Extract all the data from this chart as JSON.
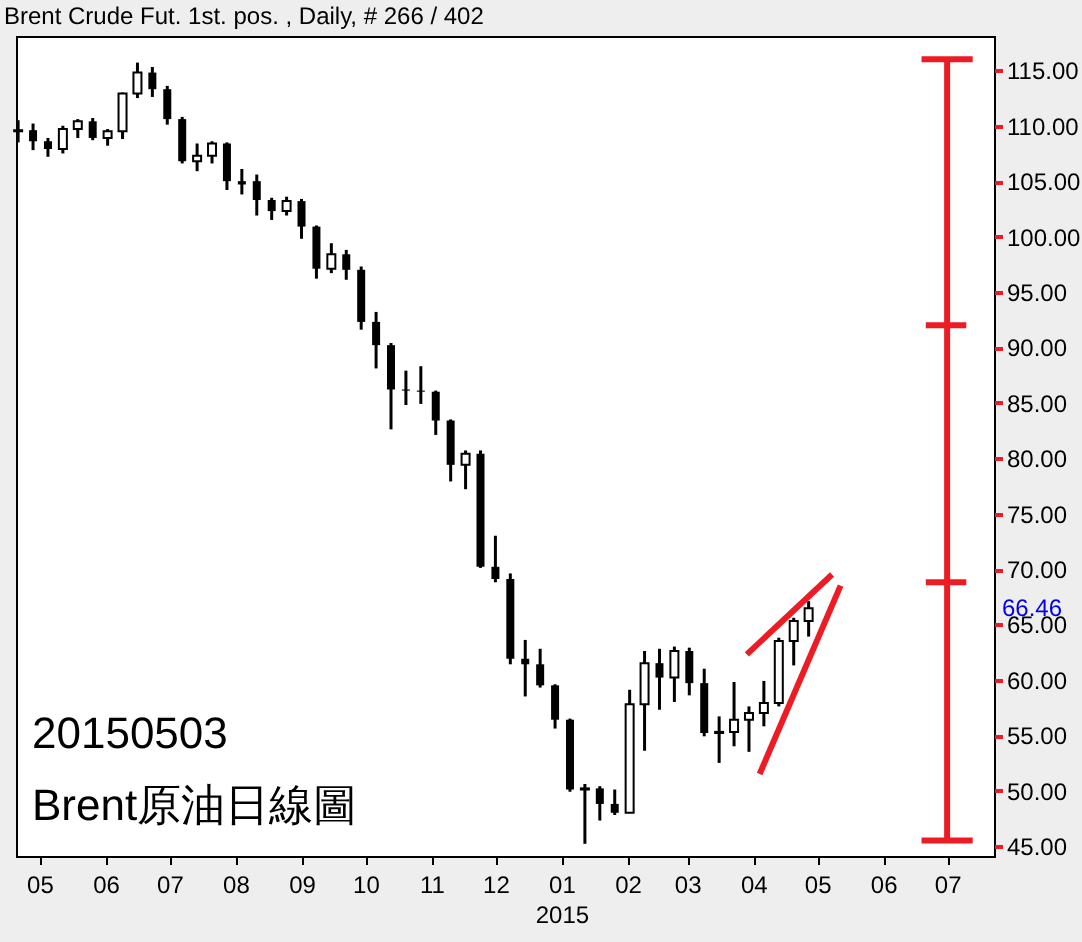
{
  "chart_data": {
    "type": "candlestick",
    "title": "Brent Crude Fut. 1st. pos. , Daily, # 266 / 402",
    "xlabel": "2015",
    "color": "#000000",
    "annotations": [
      "20150503",
      "Brent原油日線圖",
      "66.46"
    ],
    "x": [
      "2014-04-21",
      "2014-04-28",
      "2014-05-05",
      "2014-05-12",
      "2014-05-19",
      "2014-05-26",
      "2014-06-02",
      "2014-06-09",
      "2014-06-16",
      "2014-06-23",
      "2014-06-30",
      "2014-07-07",
      "2014-07-14",
      "2014-07-21",
      "2014-07-28",
      "2014-08-04",
      "2014-08-11",
      "2014-08-18",
      "2014-08-25",
      "2014-09-01",
      "2014-09-08",
      "2014-09-15",
      "2014-09-22",
      "2014-09-29",
      "2014-10-06",
      "2014-10-13",
      "2014-10-20",
      "2014-10-27",
      "2014-11-03",
      "2014-11-10",
      "2014-11-17",
      "2014-11-24",
      "2014-12-01",
      "2014-12-08",
      "2014-12-15",
      "2014-12-22",
      "2014-12-29",
      "2015-01-05",
      "2015-01-12",
      "2015-01-19",
      "2015-01-26",
      "2015-02-02",
      "2015-02-09",
      "2015-02-16",
      "2015-02-23",
      "2015-03-02",
      "2015-03-09",
      "2015-03-16",
      "2015-03-23",
      "2015-03-30",
      "2015-04-06",
      "2015-04-13",
      "2015-04-20",
      "2015-04-27"
    ],
    "ohlc": [
      [
        109.5,
        110.5,
        108.5,
        109.6
      ],
      [
        109.6,
        110.2,
        107.8,
        108.6
      ],
      [
        108.6,
        108.9,
        107.2,
        107.9
      ],
      [
        107.9,
        110.0,
        107.5,
        109.7
      ],
      [
        109.7,
        110.6,
        108.9,
        110.4
      ],
      [
        110.4,
        110.7,
        108.7,
        108.9
      ],
      [
        108.9,
        109.7,
        108.2,
        109.5
      ],
      [
        109.5,
        113.0,
        108.8,
        112.9
      ],
      [
        112.9,
        115.7,
        112.5,
        114.8
      ],
      [
        114.8,
        115.3,
        112.6,
        113.3
      ],
      [
        113.3,
        113.6,
        110.1,
        110.6
      ],
      [
        110.6,
        110.8,
        106.6,
        106.8
      ],
      [
        106.8,
        108.4,
        105.9,
        107.3
      ],
      [
        107.3,
        108.6,
        106.6,
        108.4
      ],
      [
        108.4,
        108.5,
        104.2,
        105.0
      ],
      [
        105.0,
        106.1,
        103.8,
        104.7
      ],
      [
        105.0,
        105.6,
        101.9,
        103.3
      ],
      [
        103.3,
        103.5,
        101.5,
        102.3
      ],
      [
        102.3,
        103.6,
        101.9,
        103.2
      ],
      [
        103.2,
        103.4,
        99.8,
        100.9
      ],
      [
        100.9,
        101.0,
        96.2,
        97.1
      ],
      [
        97.1,
        99.4,
        96.7,
        98.4
      ],
      [
        98.4,
        98.8,
        96.1,
        97.0
      ],
      [
        97.0,
        97.3,
        91.6,
        92.3
      ],
      [
        92.3,
        93.2,
        88.1,
        90.2
      ],
      [
        90.2,
        90.4,
        82.6,
        86.2
      ],
      [
        86.2,
        87.9,
        84.8,
        86.1
      ],
      [
        86.1,
        88.3,
        84.9,
        86.0
      ],
      [
        86.0,
        86.1,
        82.1,
        83.4
      ],
      [
        83.4,
        83.5,
        77.9,
        79.4
      ],
      [
        79.4,
        80.7,
        77.2,
        80.4
      ],
      [
        80.4,
        80.7,
        70.1,
        70.2
      ],
      [
        70.2,
        73.0,
        68.8,
        69.1
      ],
      [
        69.1,
        69.6,
        61.4,
        61.9
      ],
      [
        61.9,
        63.6,
        58.5,
        61.4
      ],
      [
        61.4,
        62.8,
        59.3,
        59.5
      ],
      [
        59.5,
        59.6,
        55.6,
        56.4
      ],
      [
        56.4,
        56.5,
        49.9,
        50.1
      ],
      [
        50.1,
        50.6,
        45.2,
        50.2
      ],
      [
        50.2,
        50.4,
        47.3,
        48.8
      ],
      [
        48.8,
        50.1,
        47.8,
        48.0
      ],
      [
        48.0,
        59.1,
        48.0,
        57.8
      ],
      [
        57.8,
        62.6,
        53.6,
        61.5
      ],
      [
        61.5,
        62.8,
        57.3,
        60.2
      ],
      [
        60.2,
        63.0,
        58.0,
        62.6
      ],
      [
        62.6,
        62.9,
        58.6,
        59.7
      ],
      [
        59.7,
        61.0,
        54.9,
        55.2
      ],
      [
        55.2,
        56.7,
        52.5,
        55.3
      ],
      [
        55.3,
        59.8,
        54.0,
        56.4
      ],
      [
        56.4,
        57.6,
        53.5,
        57.0
      ],
      [
        57.0,
        59.9,
        55.8,
        57.9
      ],
      [
        57.9,
        63.8,
        57.6,
        63.5
      ],
      [
        63.5,
        65.6,
        61.3,
        65.3
      ],
      [
        65.3,
        67.1,
        63.9,
        66.46
      ]
    ],
    "series": [
      {
        "type": "line",
        "color": "#ed1c24",
        "x": [
          "2015-03-29",
          "2015-05-08"
        ],
        "values": [
          62.3,
          69.5
        ]
      },
      {
        "type": "line",
        "color": "#ed1c24",
        "x": [
          "2015-04-04",
          "2015-05-12"
        ],
        "values": [
          51.5,
          68.5
        ]
      },
      {
        "type": "line",
        "color": "#ed1c24",
        "x": [
          "2015-07-01",
          "2015-07-01"
        ],
        "values": [
          116.0,
          45.5
        ]
      },
      {
        "type": "line",
        "color": "#ed1c24",
        "x": [
          "2015-06-19",
          "2015-07-13"
        ],
        "values": [
          116.0,
          116.0
        ]
      },
      {
        "type": "line",
        "color": "#ed1c24",
        "x": [
          "2015-06-21",
          "2015-07-10"
        ],
        "values": [
          92.0,
          92.0
        ]
      },
      {
        "type": "line",
        "color": "#ed1c24",
        "x": [
          "2015-06-21",
          "2015-07-10"
        ],
        "values": [
          68.8,
          68.8
        ]
      },
      {
        "type": "line",
        "color": "#ed1c24",
        "x": [
          "2015-06-19",
          "2015-07-13"
        ],
        "values": [
          45.5,
          45.5
        ]
      }
    ],
    "xlim": [
      "2014-04-20",
      "2015-07-23"
    ],
    "xticks": [
      {
        "value": "2014-05-01",
        "label": "05"
      },
      {
        "value": "2014-06-01",
        "label": "06"
      },
      {
        "value": "2014-07-01",
        "label": "07"
      },
      {
        "value": "2014-08-01",
        "label": "08"
      },
      {
        "value": "2014-09-01",
        "label": "09"
      },
      {
        "value": "2014-10-01",
        "label": "10"
      },
      {
        "value": "2014-11-01",
        "label": "11"
      },
      {
        "value": "2014-12-01",
        "label": "12"
      },
      {
        "value": "2015-01-01",
        "label": "01"
      },
      {
        "value": "2015-02-01",
        "label": "02"
      },
      {
        "value": "2015-03-01",
        "label": "03"
      },
      {
        "value": "2015-04-01",
        "label": "04"
      },
      {
        "value": "2015-05-01",
        "label": "05"
      },
      {
        "value": "2015-06-01",
        "label": "06"
      },
      {
        "value": "2015-07-01",
        "label": "07"
      }
    ],
    "ylim": [
      44.1,
      118.1
    ],
    "yticks": [
      {
        "value": 45,
        "label": "45.00"
      },
      {
        "value": 50,
        "label": "50.00"
      },
      {
        "value": 55,
        "label": "55.00"
      },
      {
        "value": 60,
        "label": "60.00"
      },
      {
        "value": 65,
        "label": "65.00"
      },
      {
        "value": 70,
        "label": "70.00"
      },
      {
        "value": 75,
        "label": "75.00"
      },
      {
        "value": 80,
        "label": "80.00"
      },
      {
        "value": 85,
        "label": "85.00"
      },
      {
        "value": 90,
        "label": "90.00"
      },
      {
        "value": 95,
        "label": "95.00"
      },
      {
        "value": 100,
        "label": "100.00"
      },
      {
        "value": 105,
        "label": "105.00"
      },
      {
        "value": 110,
        "label": "110.00"
      },
      {
        "value": 115,
        "label": "115.00"
      }
    ],
    "grid": false
  }
}
